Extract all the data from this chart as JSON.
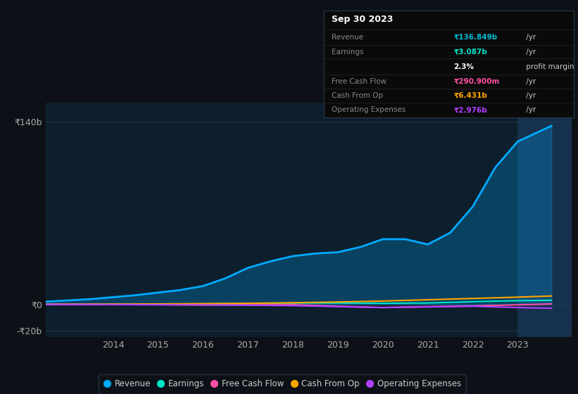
{
  "bg_color": "#0d1117",
  "plot_bg_color": "#0d1f2d",
  "highlight_bg_color": "#1a3a5c",
  "grid_color": "#1e3a4f",
  "title_text": "Sep 30 2023",
  "yticks_labels": [
    "₹140b",
    "₹0",
    "-₹20b"
  ],
  "yticks_values": [
    140,
    0,
    -20
  ],
  "xticks": [
    2013,
    2014,
    2015,
    2016,
    2017,
    2018,
    2019,
    2020,
    2021,
    2022,
    2023,
    2024
  ],
  "xtick_labels": [
    "",
    "2014",
    "2015",
    "2016",
    "2017",
    "2018",
    "2019",
    "2020",
    "2021",
    "2022",
    "2023",
    ""
  ],
  "xlim": [
    2012.5,
    2024.2
  ],
  "ylim": [
    -25,
    155
  ],
  "series": {
    "Revenue": {
      "color": "#00aaff",
      "fill_color": "#00aaff",
      "fill_alpha": 0.25,
      "data_x": [
        2012,
        2012.5,
        2013,
        2013.5,
        2014,
        2014.5,
        2015,
        2015.5,
        2016,
        2016.5,
        2017,
        2017.5,
        2018,
        2018.5,
        2019,
        2019.5,
        2020,
        2020.5,
        2021,
        2021.5,
        2022,
        2022.5,
        2023,
        2023.75
      ],
      "data_y": [
        1.5,
        2.0,
        3.0,
        4.0,
        5.5,
        7.0,
        9.0,
        11.0,
        14.0,
        20.0,
        28.0,
        33.0,
        37.0,
        39.0,
        40.0,
        44.0,
        50.0,
        50.0,
        46.0,
        55.0,
        75.0,
        105.0,
        125.0,
        137.0
      ]
    },
    "Earnings": {
      "color": "#00e5c8",
      "data_x": [
        2012,
        2013,
        2014,
        2015,
        2016,
        2017,
        2018,
        2019,
        2020,
        2021,
        2022,
        2023,
        2023.75
      ],
      "data_y": [
        0.0,
        0.0,
        0.1,
        0.2,
        0.3,
        0.6,
        1.0,
        1.0,
        0.8,
        1.0,
        2.0,
        2.8,
        3.1
      ]
    },
    "Free Cash Flow": {
      "color": "#ff4fa3",
      "data_x": [
        2012,
        2013,
        2014,
        2015,
        2016,
        2017,
        2018,
        2019,
        2020,
        2021,
        2022,
        2023,
        2023.75
      ],
      "data_y": [
        0.0,
        -0.1,
        -0.2,
        -0.3,
        -0.5,
        -0.4,
        -0.3,
        -1.5,
        -2.5,
        -1.8,
        -1.2,
        -0.4,
        0.29
      ]
    },
    "Cash From Op": {
      "color": "#ffa500",
      "data_x": [
        2012,
        2013,
        2014,
        2015,
        2016,
        2017,
        2018,
        2019,
        2020,
        2021,
        2022,
        2023,
        2023.75
      ],
      "data_y": [
        0.0,
        0.1,
        0.2,
        0.3,
        0.5,
        0.8,
        1.2,
        1.8,
        2.5,
        3.5,
        4.5,
        5.5,
        6.4
      ]
    },
    "Operating Expenses": {
      "color": "#b040ff",
      "data_x": [
        2012,
        2013,
        2014,
        2015,
        2016,
        2017,
        2018,
        2019,
        2020,
        2021,
        2022,
        2023,
        2023.75
      ],
      "data_y": [
        0.0,
        -0.1,
        -0.2,
        -0.3,
        -0.5,
        -0.7,
        -1.0,
        -1.8,
        -2.5,
        -2.0,
        -1.5,
        -2.5,
        -3.0
      ]
    }
  },
  "legend_items": [
    {
      "label": "Revenue",
      "color": "#00aaff"
    },
    {
      "label": "Earnings",
      "color": "#00e5c8"
    },
    {
      "label": "Free Cash Flow",
      "color": "#ff4fa3"
    },
    {
      "label": "Cash From Op",
      "color": "#ffa500"
    },
    {
      "label": "Operating Expenses",
      "color": "#b040ff"
    }
  ],
  "highlight_x_start": 2023.0,
  "highlight_x_end": 2024.2,
  "tooltip": {
    "title": "Sep 30 2023",
    "rows": [
      {
        "label": "Revenue",
        "value": "₹136.849b",
        "suffix": " /yr",
        "val_color": "#00bcd4",
        "bold": true
      },
      {
        "label": "Earnings",
        "value": "₹3.087b",
        "suffix": " /yr",
        "val_color": "#00e5c8",
        "bold": true
      },
      {
        "label": "",
        "value": "2.3%",
        "suffix": " profit margin",
        "val_color": "#ffffff",
        "bold": true
      },
      {
        "label": "Free Cash Flow",
        "value": "₹290.900m",
        "suffix": " /yr",
        "val_color": "#ff4fa3",
        "bold": true
      },
      {
        "label": "Cash From Op",
        "value": "₹6.431b",
        "suffix": " /yr",
        "val_color": "#ffa500",
        "bold": true
      },
      {
        "label": "Operating Expenses",
        "value": "₹2.976b",
        "suffix": " /yr",
        "val_color": "#b040ff",
        "bold": true
      }
    ]
  }
}
